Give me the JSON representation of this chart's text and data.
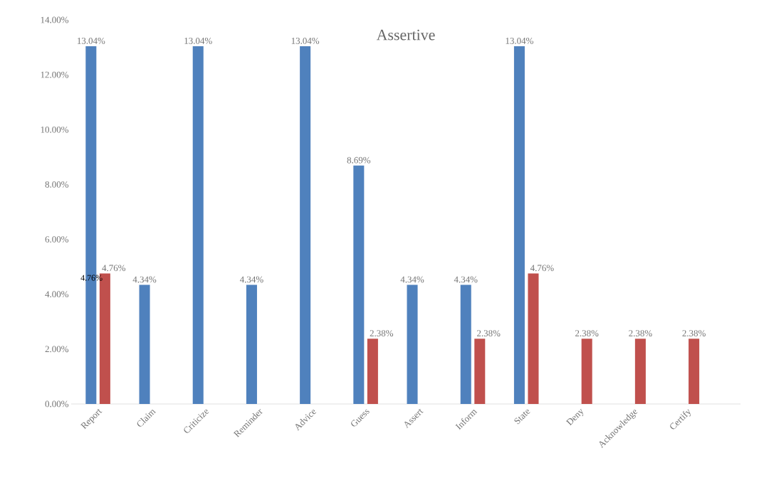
{
  "chart_data": {
    "type": "bar",
    "title": "Assertive",
    "categories": [
      "Report",
      "Claim",
      "Criticize",
      "Reminder",
      "Advice",
      "Guess",
      "Assert",
      "Inform",
      "State",
      "Deny",
      "Acknowledge",
      "Certify"
    ],
    "series": [
      {
        "color": "#4f81bd",
        "values": [
          13.04,
          4.34,
          13.04,
          4.34,
          13.04,
          8.69,
          4.34,
          4.34,
          13.04,
          null,
          null,
          null
        ],
        "value_labels": [
          "13.04%",
          "4.34%",
          "13.04%",
          "4.34%",
          "13.04%",
          "8.69%",
          "4.34%",
          "4.34%",
          "13.04%",
          null,
          null,
          null
        ]
      },
      {
        "color": "#c0504d",
        "values": [
          4.76,
          null,
          null,
          null,
          null,
          2.38,
          null,
          2.38,
          4.76,
          2.38,
          2.38,
          2.38
        ],
        "value_labels": [
          "4.76%",
          null,
          null,
          null,
          null,
          "2.38%",
          null,
          "2.38%",
          "4.76%",
          "2.38%",
          "2.38%",
          "2.38%"
        ]
      }
    ],
    "ylim": [
      0,
      14
    ],
    "yticks": [
      {
        "value": 0,
        "label": "0.00%"
      },
      {
        "value": 2,
        "label": "2.00%"
      },
      {
        "value": 4,
        "label": "4.00%"
      },
      {
        "value": 6,
        "label": "6.00%"
      },
      {
        "value": 8,
        "label": "8.00%"
      },
      {
        "value": 10,
        "label": "10.00%"
      },
      {
        "value": 12,
        "label": "12.00%"
      },
      {
        "value": 14,
        "label": "14.00%"
      }
    ],
    "annotations": [
      {
        "text": "4.76%",
        "x": "Report",
        "y": 4.76
      }
    ]
  }
}
